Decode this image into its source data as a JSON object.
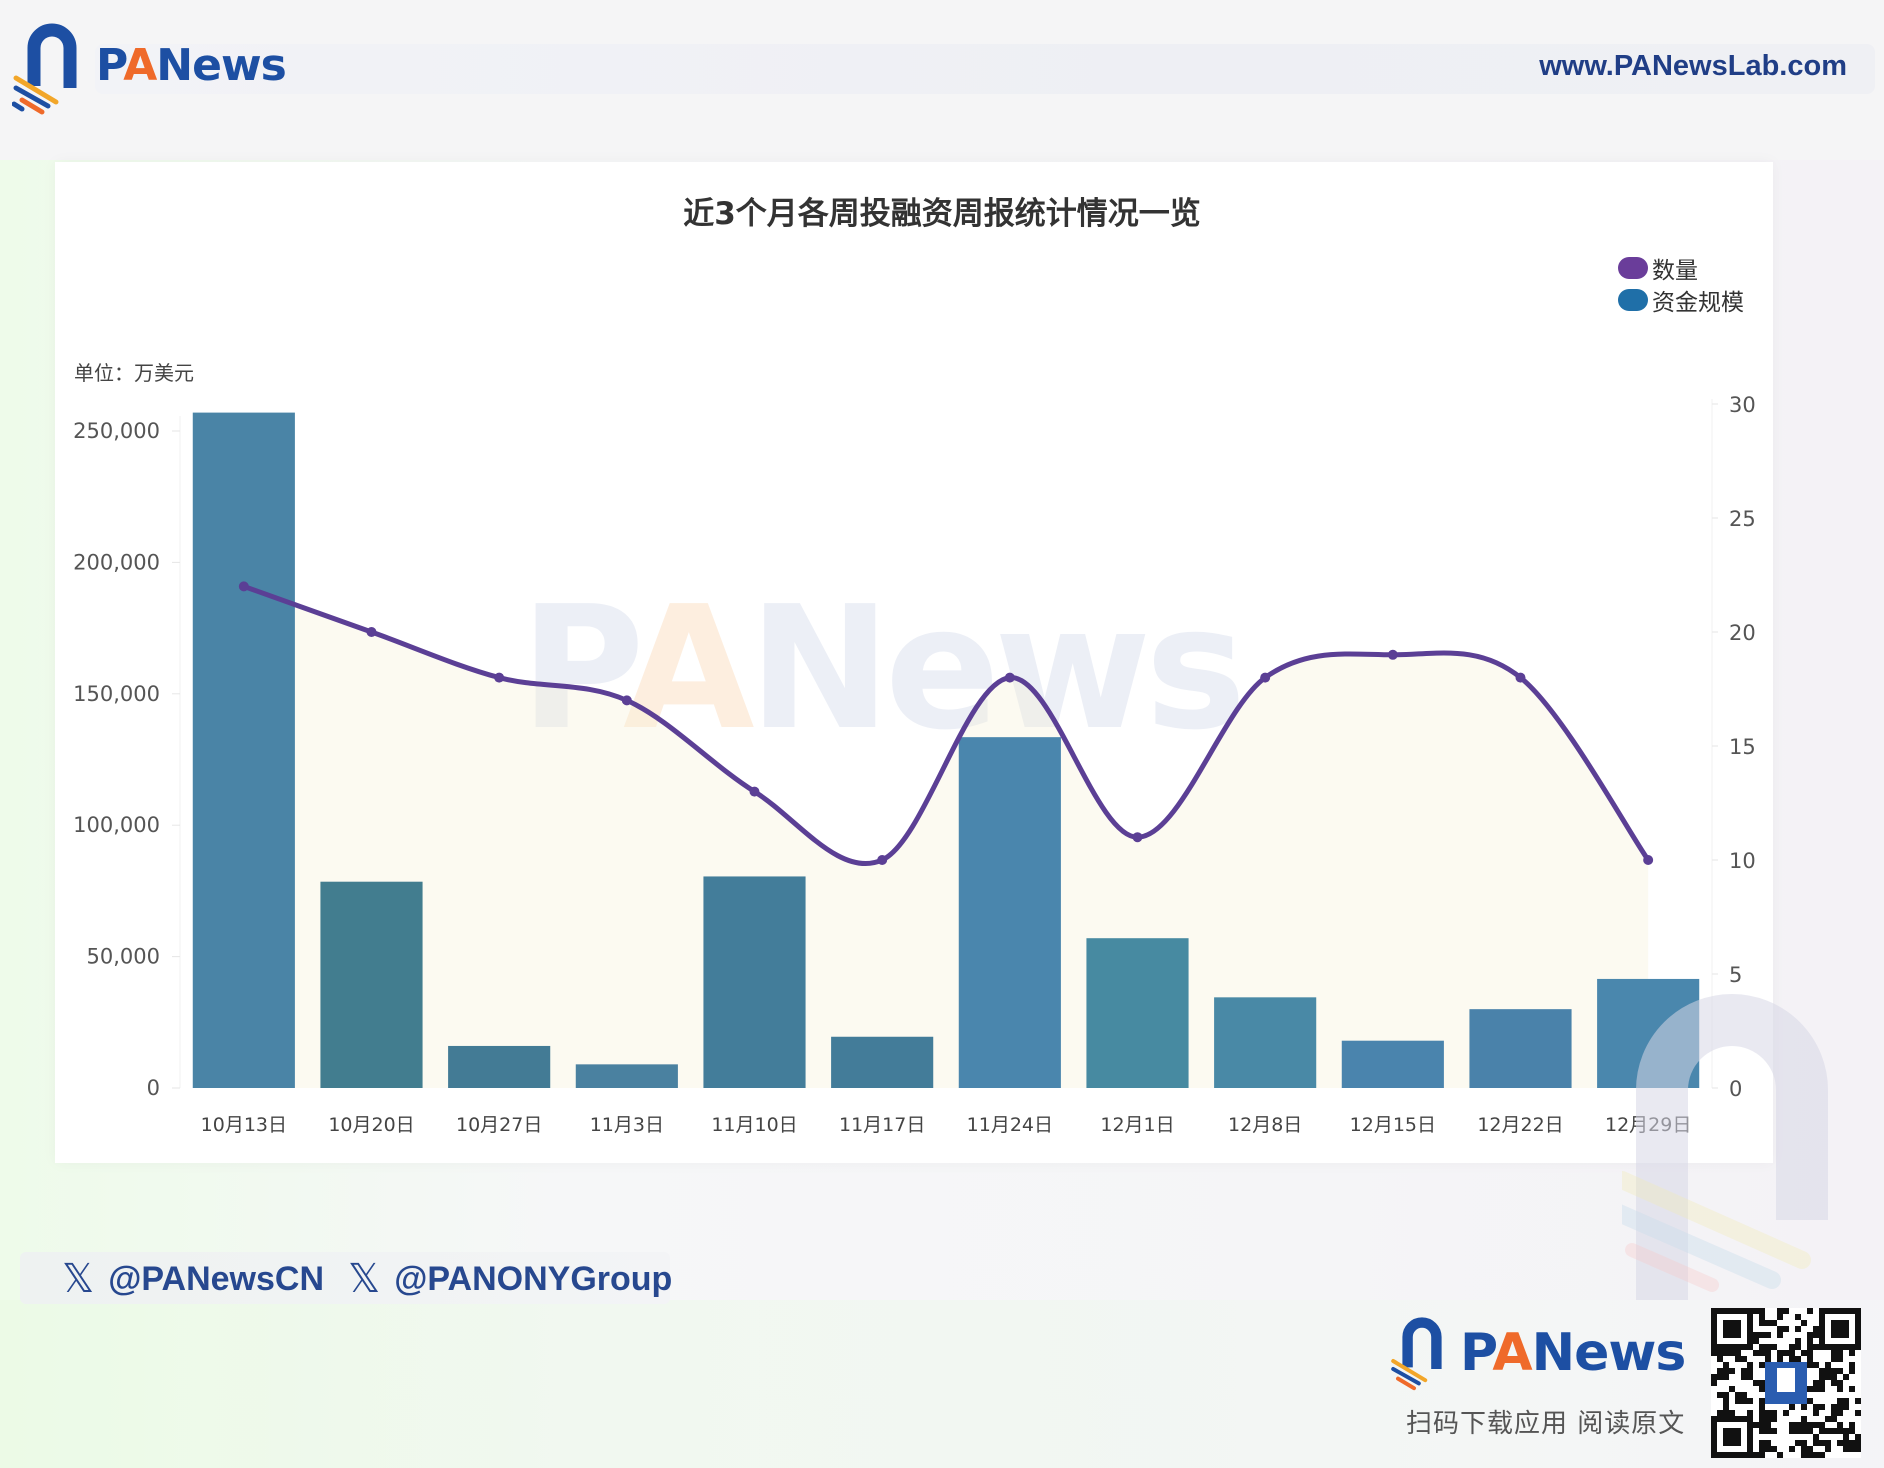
{
  "header": {
    "brand_name_prefix": "P",
    "brand_name_accent": "A",
    "brand_name_suffix": "News",
    "website": "www.PANewsLab.com"
  },
  "chart_card": {
    "title": "近3个月各周投融资周报统计情况一览",
    "unit_label": "单位：万美元",
    "watermark": "PANews",
    "legend": [
      {
        "label": "数量",
        "color": "#6a3d9a",
        "icon": "legend-dot-icon"
      },
      {
        "label": "资金规模",
        "color": "#1f6fa8",
        "icon": "legend-dot-icon"
      }
    ]
  },
  "chart_data": {
    "type": "bar",
    "title": "近3个月各周投融资周报统计情况一览",
    "xlabel": "",
    "ylabel": "单位：万美元",
    "y2label": "数量",
    "categories": [
      "10月13日",
      "10月20日",
      "10月27日",
      "11月3日",
      "11月10日",
      "11月17日",
      "11月24日",
      "12月1日",
      "12月8日",
      "12月15日",
      "12月22日",
      "12月29日"
    ],
    "series": [
      {
        "name": "资金规模",
        "type": "bar",
        "axis": "left",
        "color": "#467f9f",
        "values": [
          257000,
          78500,
          16000,
          9000,
          80500,
          19500,
          133500,
          57000,
          34500,
          18000,
          30000,
          41500
        ]
      },
      {
        "name": "数量",
        "type": "line",
        "axis": "right",
        "color": "#5b3f95",
        "smooth": true,
        "values": [
          22,
          20,
          18,
          17,
          13,
          10,
          18,
          11,
          18,
          19,
          18,
          10
        ]
      }
    ],
    "ylim": [
      0,
      250000
    ],
    "y_ticks": [
      "0",
      "50,000",
      "100,000",
      "150,000",
      "200,000",
      "250,000"
    ],
    "y2lim": [
      0,
      30
    ],
    "y2_ticks": [
      "0",
      "5",
      "10",
      "15",
      "20",
      "25",
      "30"
    ],
    "grid": false,
    "legend_position": "top-right"
  },
  "footer": {
    "social": [
      {
        "icon": "x-twitter-icon",
        "handle": "@PANewsCN"
      },
      {
        "icon": "x-twitter-icon",
        "handle": "@PANONYGroup"
      }
    ],
    "brand_name_prefix": "P",
    "brand_name_accent": "A",
    "brand_name_suffix": "News",
    "slogan": "扫码下载应用  阅读原文",
    "qr_label": "qr-code"
  }
}
